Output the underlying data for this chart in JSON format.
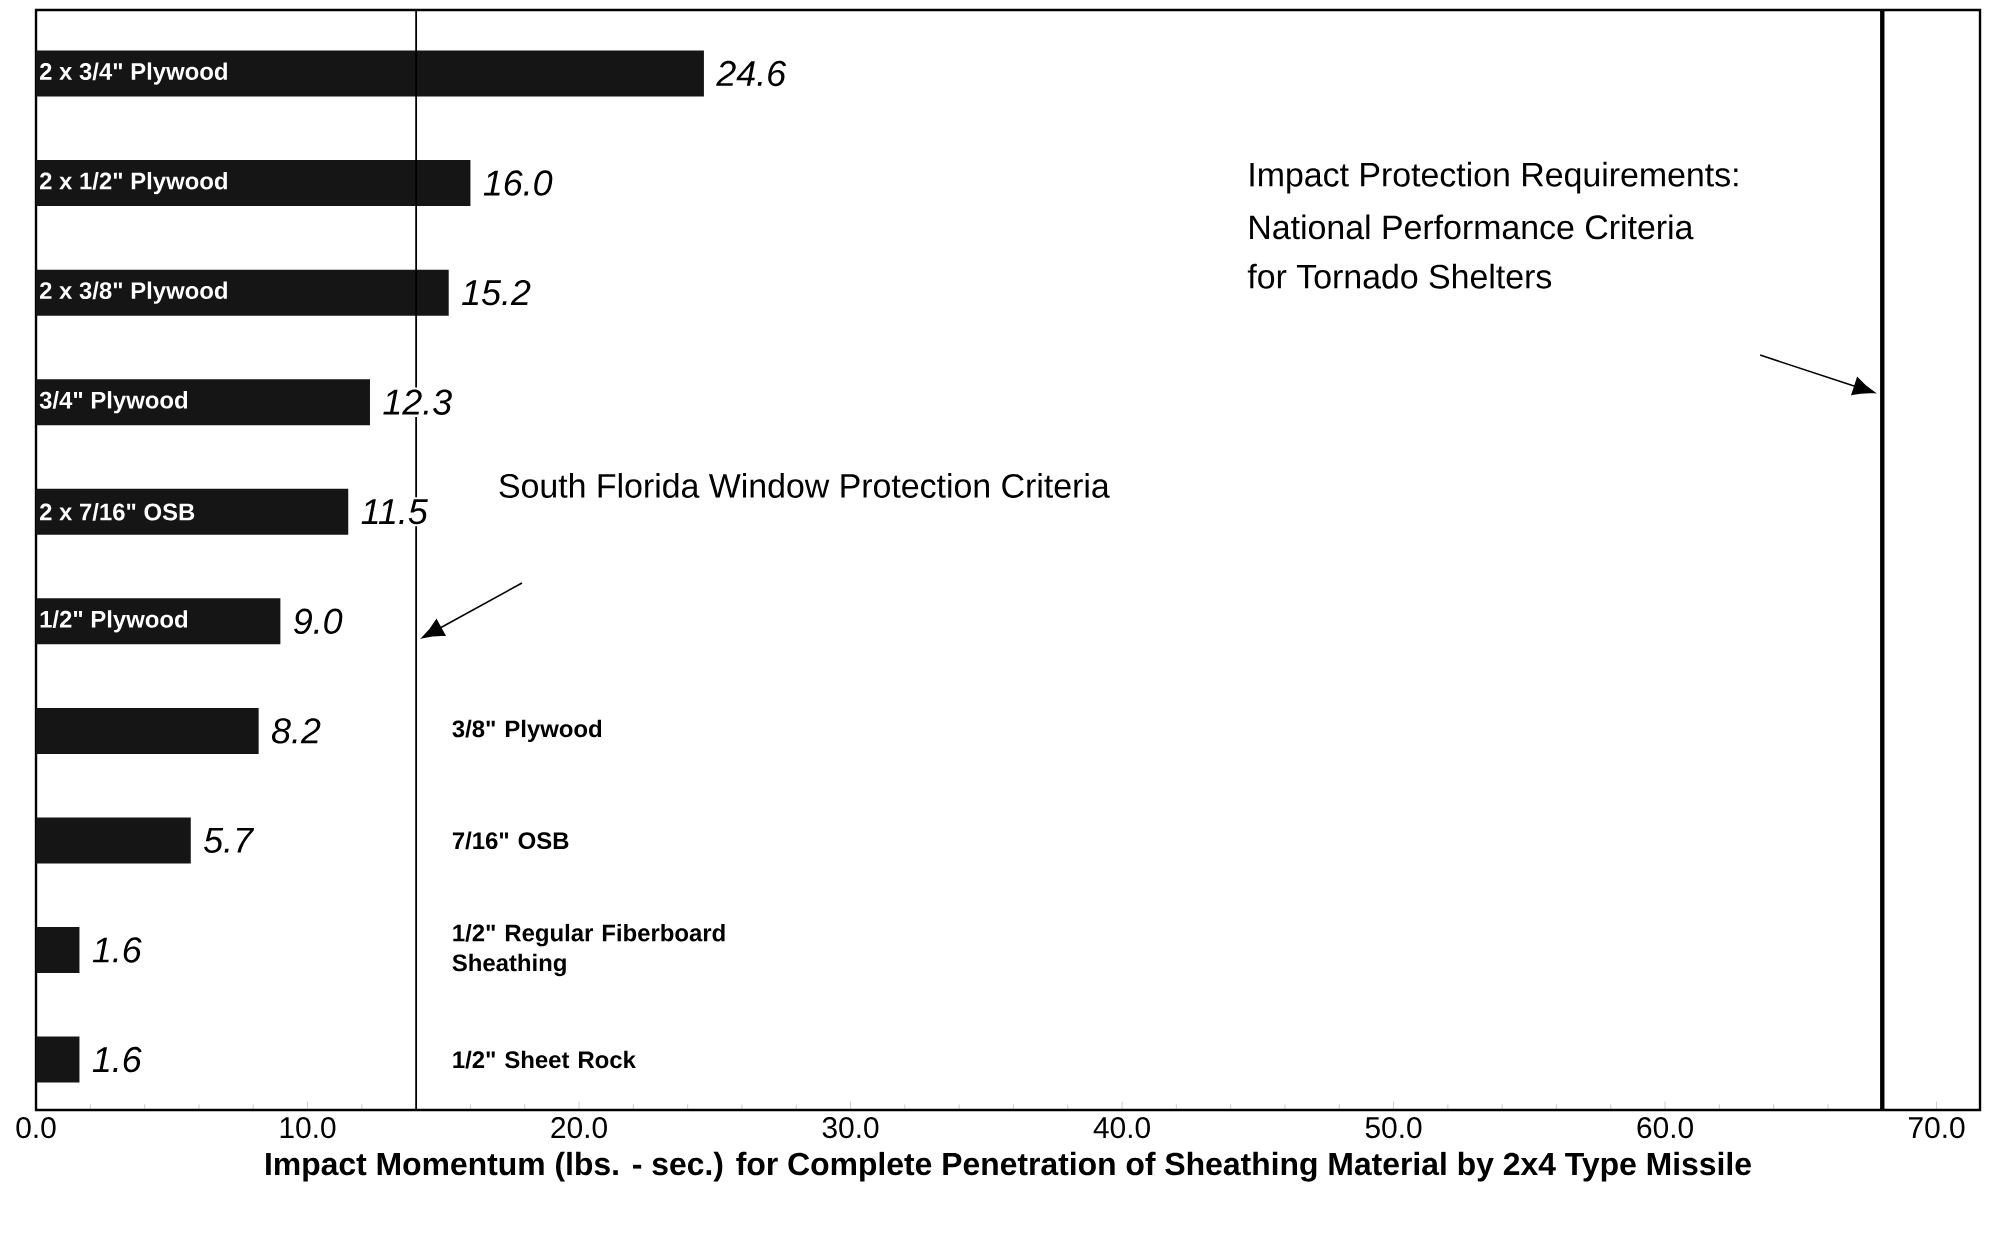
{
  "chart_data": {
    "type": "bar",
    "orientation": "horizontal",
    "categories": [
      "2 x 3/4\" Plywood",
      "2 x 1/2\" Plywood",
      "2 x 3/8\" Plywood",
      "3/4\" Plywood",
      "2 x 7/16\" OSB",
      "1/2\" Plywood",
      "3/8\" Plywood",
      "7/16\" OSB",
      "1/2\" Regular Fiberboard Sheathing",
      "1/2\" Sheet Rock"
    ],
    "values": [
      24.6,
      16.0,
      15.2,
      12.3,
      11.5,
      9.0,
      8.2,
      5.7,
      1.6,
      1.6
    ],
    "value_labels": [
      "24.6",
      "16.0",
      "15.2",
      "12.3",
      "11.5",
      "9.0",
      "8.2",
      "5.7",
      "1.6",
      "1.6"
    ],
    "color": "#151515",
    "xlabel": "Impact Momentum (lbs. - sec.) for Complete Penetration of Sheathing Material by 2x4 Type Missile",
    "xlim": [
      0,
      71.6
    ],
    "xticks": [
      {
        "value": 0,
        "label": "0.0"
      },
      {
        "value": 10,
        "label": "10.0"
      },
      {
        "value": 20,
        "label": "20.0"
      },
      {
        "value": 30,
        "label": "30.0"
      },
      {
        "value": 40,
        "label": "40.0"
      },
      {
        "value": 50,
        "label": "50.0"
      },
      {
        "value": 60,
        "label": "60.0"
      },
      {
        "value": 70,
        "label": "70.0"
      }
    ],
    "ref_lines": [
      {
        "axis": "x",
        "value": 14.0,
        "color": "#000000"
      },
      {
        "axis": "x",
        "value": 68.0,
        "color": "#000000"
      }
    ],
    "annotations": [
      "South Florida Window Protection Criteria",
      "Impact Protection Requirements:",
      "National Performance Criteria",
      "for Tornado Shelters"
    ],
    "grid": false
  }
}
